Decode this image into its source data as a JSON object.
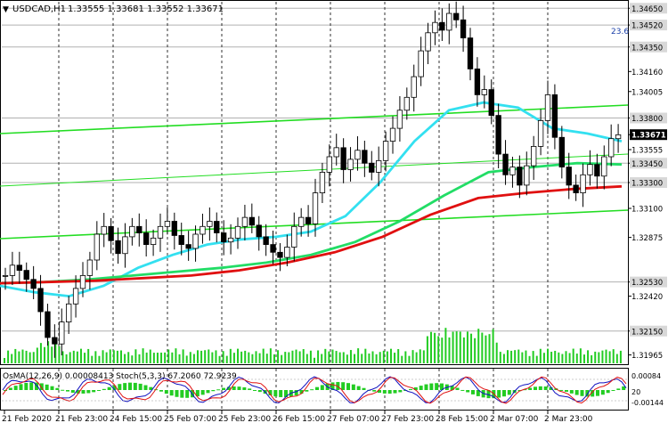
{
  "header": {
    "symbol": "USDCAD,H1",
    "ohlc": "1.33555 1.33681 1.33552 1.33671"
  },
  "fib_label": "23.6",
  "price_axis": {
    "ticks": [
      "1.34650",
      "1.34520",
      "1.34350",
      "1.34160",
      "1.34005",
      "1.33800",
      "1.33671",
      "1.33555",
      "1.33450",
      "1.33300",
      "1.33100",
      "1.32875",
      "1.32530",
      "1.32420",
      "1.32150",
      "1.31965"
    ],
    "highlighted": [
      "1.34650",
      "1.34520",
      "1.34350",
      "1.33800",
      "1.33671",
      "1.33450",
      "1.33300",
      "1.32530",
      "1.32150"
    ],
    "current_price": "1.33671"
  },
  "indicator": {
    "label": "OsMA(12,26,9) 0.00008413 Stoch(5,3,3) 67.2060 72.9239",
    "axis": [
      "0.00084",
      "20",
      "-0.00144"
    ]
  },
  "time_axis": [
    "21 Feb 2020",
    "21 Feb 23:00",
    "24 Feb 15:00",
    "25 Feb 07:00",
    "25 Feb 23:00",
    "26 Feb 15:00",
    "27 Feb 07:00",
    "27 Feb 23:00",
    "28 Feb 15:00",
    "2 Mar 07:00",
    "2 Mar 23:00"
  ],
  "colors": {
    "bull_candle": "#ffffff",
    "bear_candle": "#000000",
    "ma_cyan": "#33e0f0",
    "ma_green": "#22dd66",
    "ma_red": "#e01010",
    "channel": "#22dd22",
    "level_line": "#b0b0b0",
    "volume": "#22cc22",
    "histogram": "#22cc22",
    "stoch_main": "#1010c0",
    "stoch_signal": "#e01010"
  },
  "chart_data": {
    "type": "candlestick",
    "symbol": "USDCAD",
    "timeframe": "H1",
    "x": [
      "21 Feb 2020",
      "21 Feb 23:00",
      "24 Feb 15:00",
      "25 Feb 07:00",
      "25 Feb 23:00",
      "26 Feb 15:00",
      "27 Feb 07:00",
      "27 Feb 23:00",
      "28 Feb 15:00",
      "2 Mar 07:00",
      "2 Mar 23:00"
    ],
    "close_path": [
      1.3258,
      1.3266,
      1.3262,
      1.3255,
      1.3248,
      1.323,
      1.321,
      1.3205,
      1.3222,
      1.3236,
      1.3248,
      1.3258,
      1.327,
      1.329,
      1.3296,
      1.3285,
      1.3275,
      1.3288,
      1.3296,
      1.3291,
      1.3282,
      1.3287,
      1.3296,
      1.33,
      1.3289,
      1.3282,
      1.3279,
      1.329,
      1.3296,
      1.33,
      1.3291,
      1.3284,
      1.3287,
      1.3296,
      1.3303,
      1.3297,
      1.3288,
      1.3282,
      1.3276,
      1.3272,
      1.328,
      1.3296,
      1.3303,
      1.3298,
      1.3322,
      1.3338,
      1.335,
      1.3357,
      1.334,
      1.3348,
      1.3355,
      1.3345,
      1.3338,
      1.3347,
      1.3362,
      1.3372,
      1.3386,
      1.3396,
      1.3412,
      1.3432,
      1.3446,
      1.3454,
      1.3448,
      1.3461,
      1.3456,
      1.3442,
      1.3418,
      1.3398,
      1.3402,
      1.3382,
      1.3352,
      1.3336,
      1.3342,
      1.3328,
      1.3343,
      1.3358,
      1.3378,
      1.3398,
      1.3365,
      1.3342,
      1.3328,
      1.3322,
      1.3336,
      1.3344,
      1.3335,
      1.335,
      1.3364,
      1.3367
    ],
    "moving_averages": [
      {
        "color": "#33e0f0",
        "values": [
          1.325,
          1.3245,
          1.3242,
          1.325,
          1.3264,
          1.3274,
          1.3282,
          1.3286,
          1.3288,
          1.3292,
          1.3304,
          1.333,
          1.3362,
          1.3386,
          1.3392,
          1.3388,
          1.3372,
          1.3368,
          1.3362
        ]
      },
      {
        "color": "#22dd66",
        "values": [
          1.3252,
          1.3253,
          1.3255,
          1.3258,
          1.3261,
          1.3264,
          1.3268,
          1.3274,
          1.3284,
          1.33,
          1.332,
          1.3338,
          1.3342,
          1.3345,
          1.3344
        ]
      },
      {
        "color": "#e01010",
        "values": [
          1.3252,
          1.3253,
          1.3254,
          1.3256,
          1.3258,
          1.3262,
          1.3268,
          1.3276,
          1.3288,
          1.3305,
          1.3318,
          1.3322,
          1.3325,
          1.3327
        ]
      }
    ],
    "horizontal_levels": [
      1.3465,
      1.3452,
      1.3435,
      1.338,
      1.3345,
      1.333,
      1.3253,
      1.3215
    ],
    "ylim": [
      1.319,
      1.347
    ]
  }
}
